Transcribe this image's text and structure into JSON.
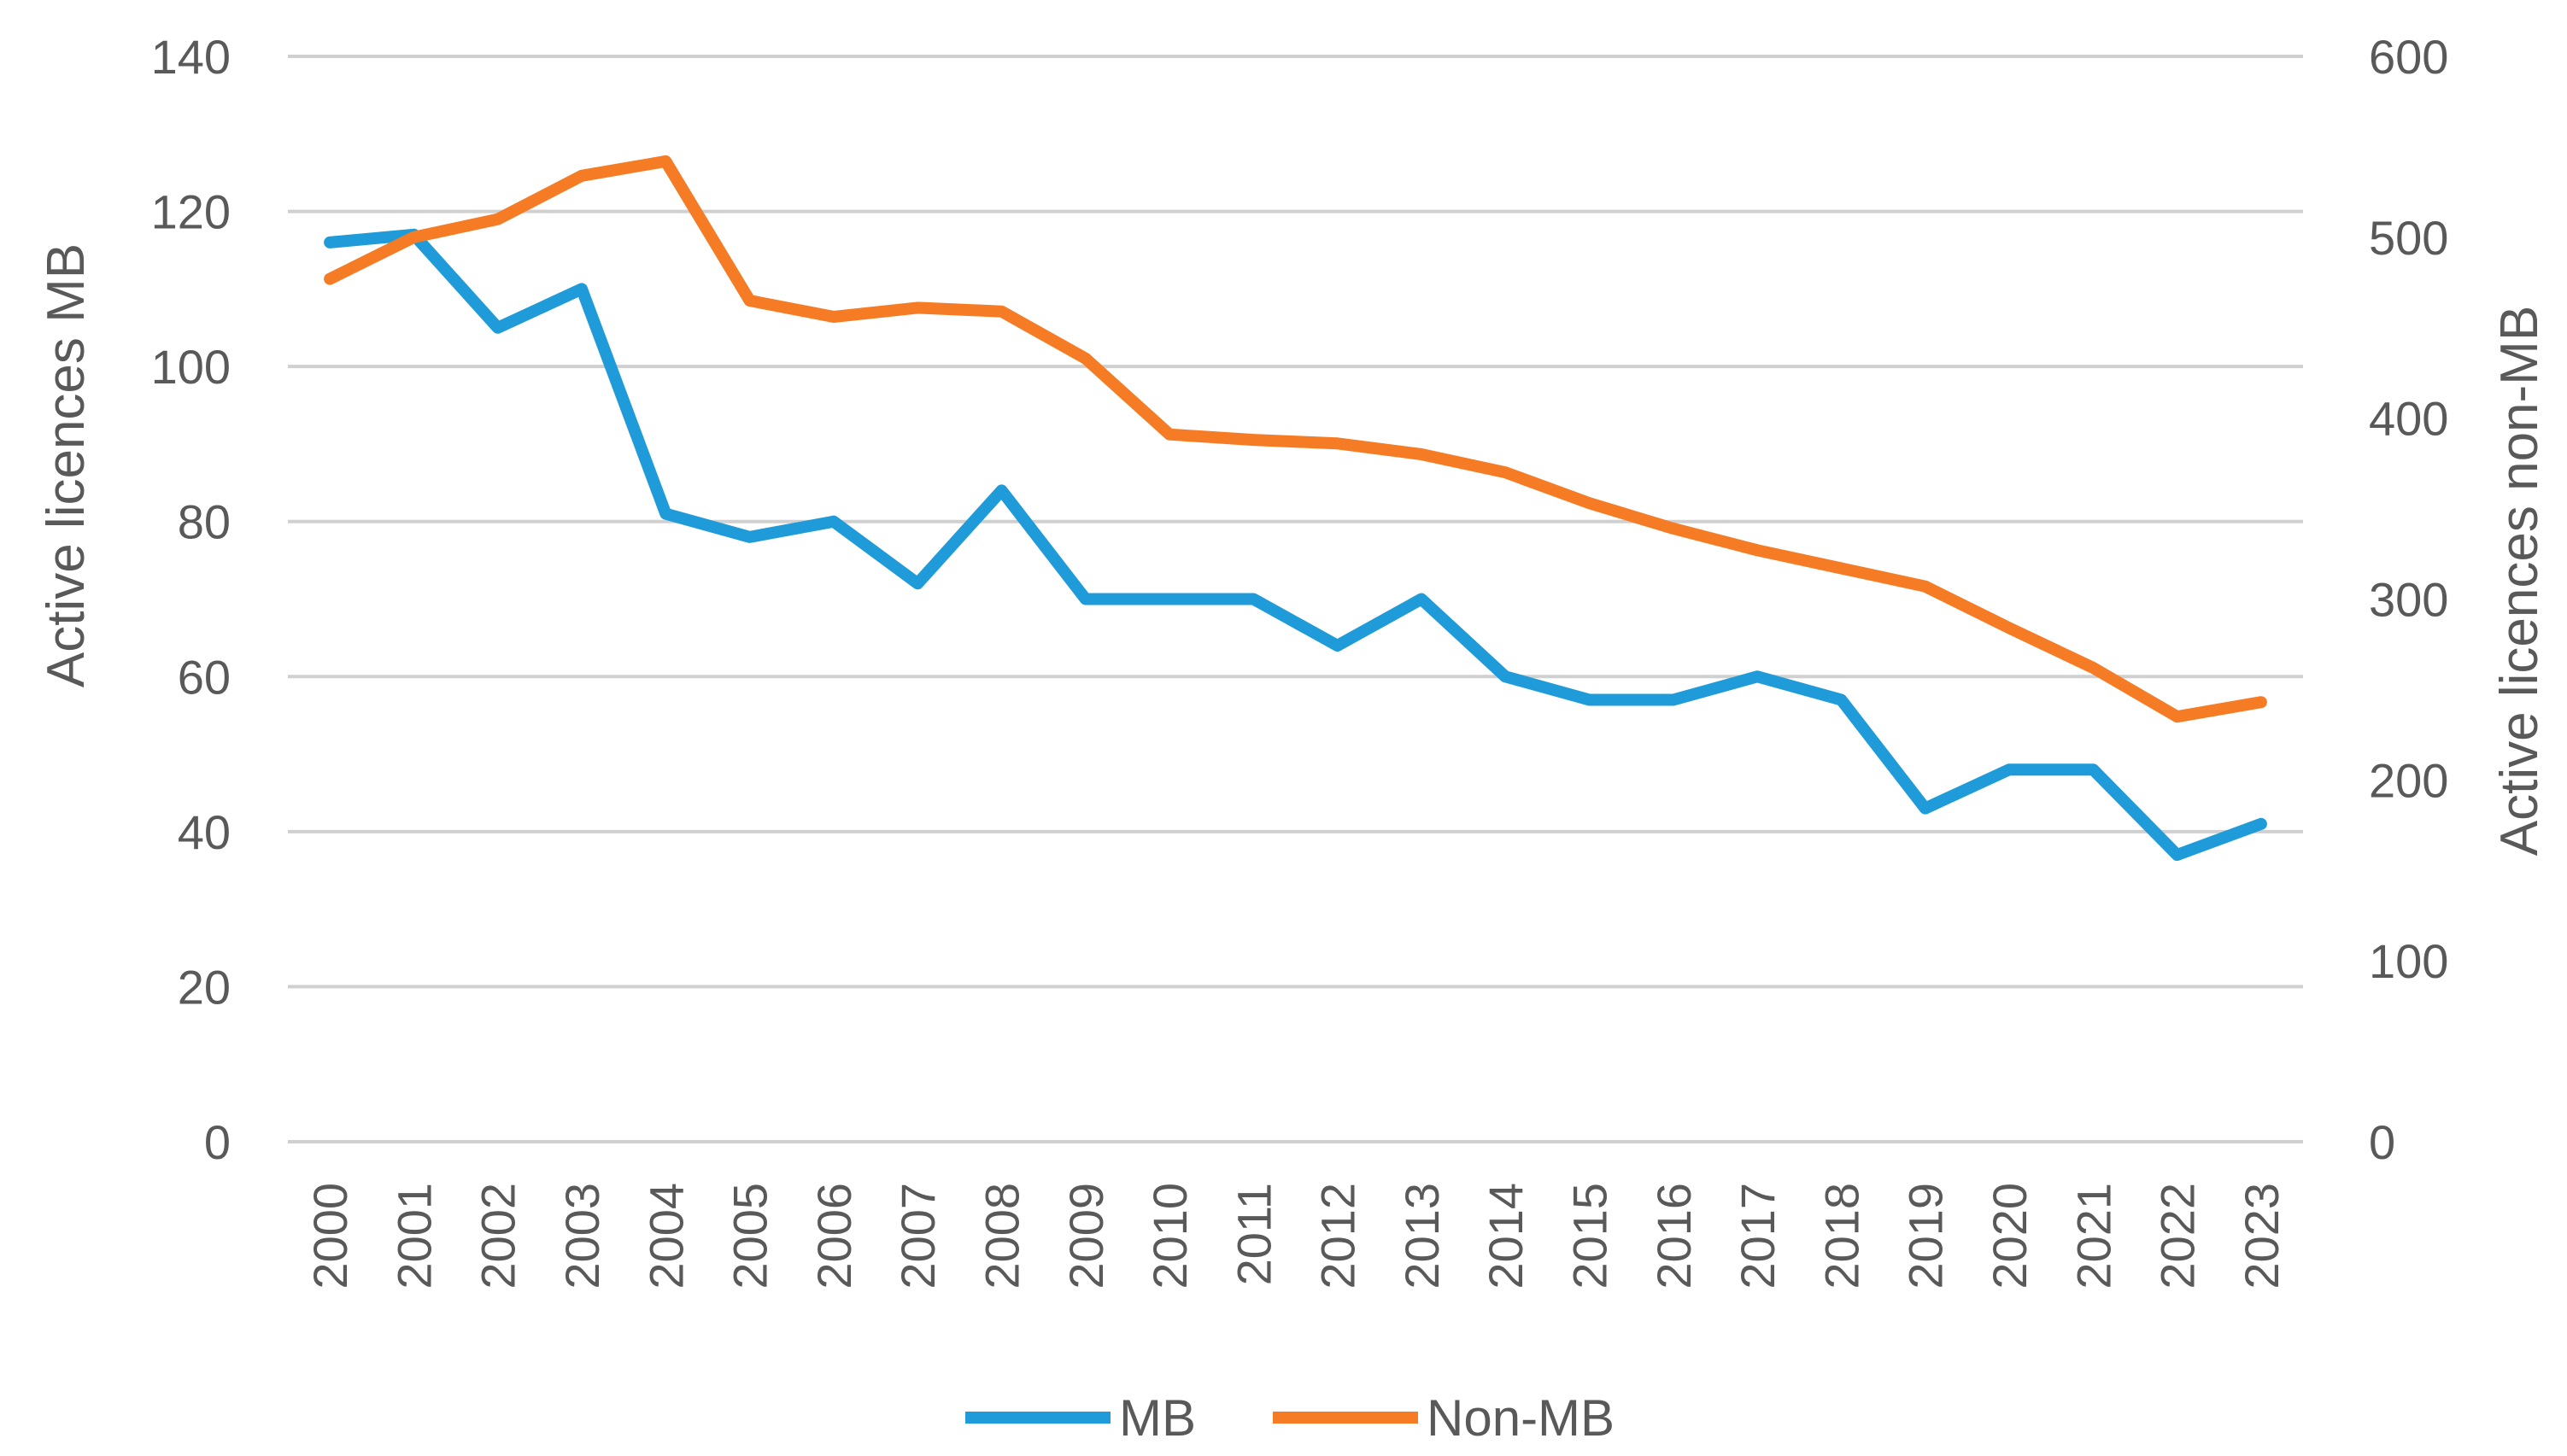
{
  "chart_data": {
    "type": "line",
    "title": "",
    "xlabel": "",
    "ylabel_left": "Active licences MB",
    "ylabel_right": "Active licences non-MB",
    "ylim_left": [
      0,
      140
    ],
    "ylim_right": [
      0,
      600
    ],
    "yticks_left": [
      0,
      20,
      40,
      60,
      80,
      100,
      120,
      140
    ],
    "yticks_right": [
      0,
      100,
      200,
      300,
      400,
      500,
      600
    ],
    "grid": true,
    "legend_position": "bottom",
    "categories": [
      "2000",
      "2001",
      "2002",
      "2003",
      "2004",
      "2005",
      "2006",
      "2007",
      "2008",
      "2009",
      "2010",
      "2011",
      "2012",
      "2013",
      "2014",
      "2015",
      "2016",
      "2017",
      "2018",
      "2019",
      "2020",
      "2021",
      "2022",
      "2023"
    ],
    "series": [
      {
        "name": "MB",
        "axis": "left",
        "color": "#1f9bd9",
        "values": [
          116,
          117,
          105,
          110,
          81,
          78,
          80,
          72,
          84,
          70,
          70,
          70,
          64,
          70,
          60,
          57,
          57,
          60,
          57,
          43,
          48,
          48,
          37,
          41
        ]
      },
      {
        "name": "Non-MB",
        "axis": "right",
        "color": "#f57c25",
        "values": [
          477,
          500,
          510,
          534,
          542,
          465,
          456,
          461,
          459,
          433,
          391,
          388,
          386,
          380,
          370,
          353,
          339,
          327,
          317,
          307,
          284,
          262,
          235,
          243
        ]
      }
    ]
  }
}
